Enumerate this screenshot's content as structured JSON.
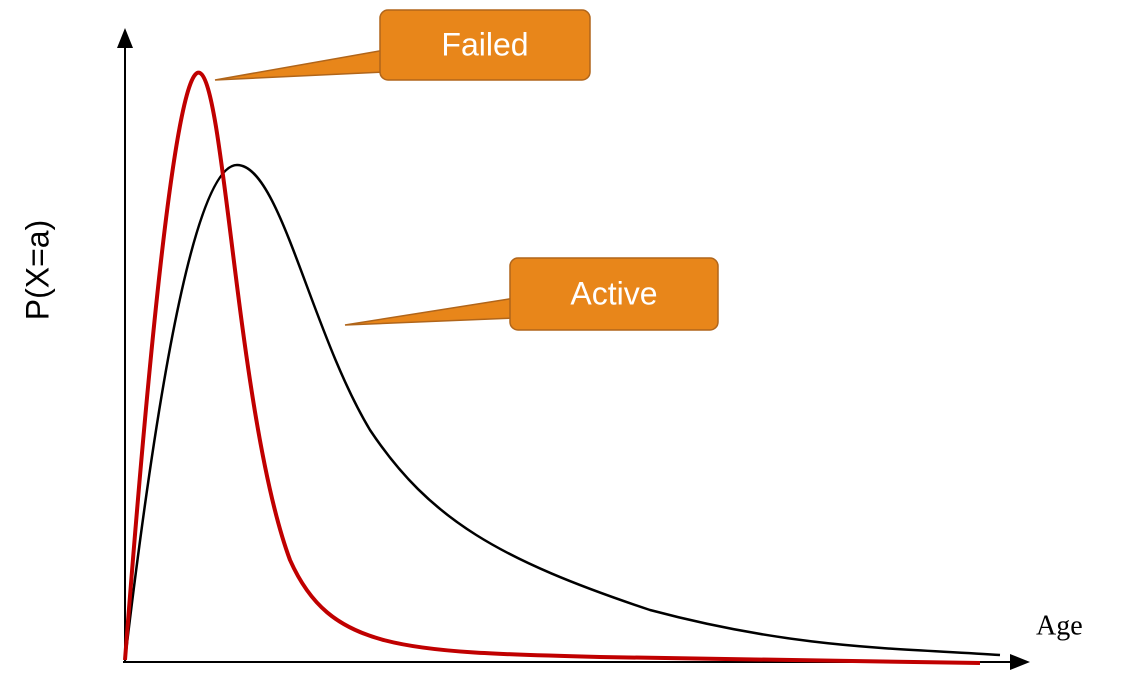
{
  "axes": {
    "y_label": "P(X=a)",
    "x_label": "Age"
  },
  "callouts": [
    {
      "label": "Failed"
    },
    {
      "label": "Active"
    }
  ]
}
